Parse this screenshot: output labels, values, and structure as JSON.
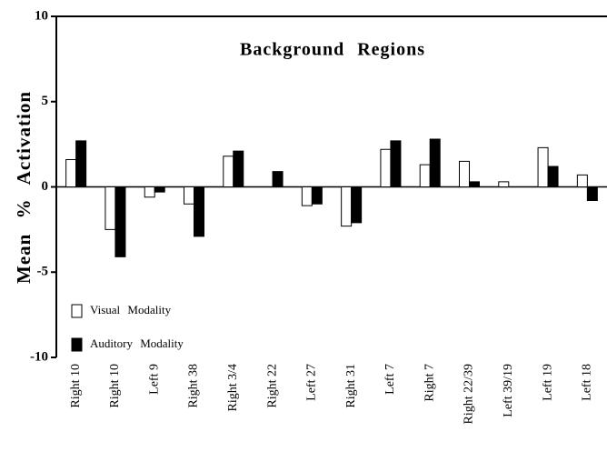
{
  "chart_data": {
    "type": "bar",
    "title": "Background Regions",
    "y_label": "Mean % Activation",
    "categories": [
      "Right 10",
      "Right 10",
      "Left 9",
      "Right 38",
      "Right 3/4",
      "Right 22",
      "Left 27",
      "Right 31",
      "Left 7",
      "Right 7",
      "Right 22/39",
      "Left 39/19",
      "Left 19",
      "Left 18"
    ],
    "series": [
      {
        "name": "Visual Modality",
        "color": "#ffffff",
        "values": [
          1.6,
          -2.5,
          -0.6,
          -1.0,
          1.8,
          0,
          -1.1,
          -2.3,
          2.2,
          1.3,
          1.5,
          0.3,
          2.3,
          0.7
        ]
      },
      {
        "name": "Auditory Modality",
        "color": "#000000",
        "values": [
          2.7,
          -4.1,
          -0.3,
          -2.9,
          2.1,
          0.9,
          -1.0,
          -2.1,
          2.7,
          2.8,
          0.3,
          0,
          1.2,
          -0.8
        ]
      }
    ],
    "ylim": [
      -10,
      10
    ],
    "yticks": [
      -10,
      -5,
      0,
      5,
      10
    ],
    "legend": "lower-left"
  }
}
